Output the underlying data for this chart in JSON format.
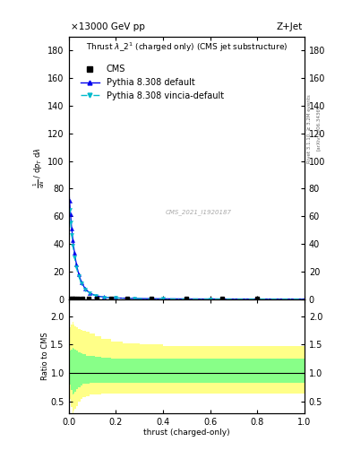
{
  "header_left": "×13000 GeV pp",
  "header_right": "Z+Jet",
  "cms_label": "CMS_2021_I1920187",
  "title_line": "Thrust λ_2¹ⁿ(charged only) (CMS jet substructure)",
  "xlabel": "thrust (charged-only)",
  "right_label1": "Rivet 3.1.10, ≥ 3.2M events",
  "right_label2": "[arXiv:1306.3436]",
  "ratio_ylabel": "Ratio to CMS",
  "ylim_main": [
    0,
    190
  ],
  "ylim_ratio": [
    0.3,
    2.3
  ],
  "xlim": [
    0,
    1
  ],
  "ratio_yticks": [
    0.5,
    1.0,
    1.5,
    2.0
  ],
  "main_yticks": [
    0,
    20,
    40,
    60,
    80,
    100,
    120,
    140,
    160,
    180
  ],
  "cms_color": "#000000",
  "pythia_default_color": "#0000EE",
  "pythia_vincia_color": "#00BBCC",
  "bg_color": "#ffffff",
  "ratio_yellow": "#FFFF88",
  "ratio_green": "#88FF88",
  "tick_label_size": 7,
  "axis_label_size": 6.5,
  "title_size": 8,
  "legend_size": 7.5
}
